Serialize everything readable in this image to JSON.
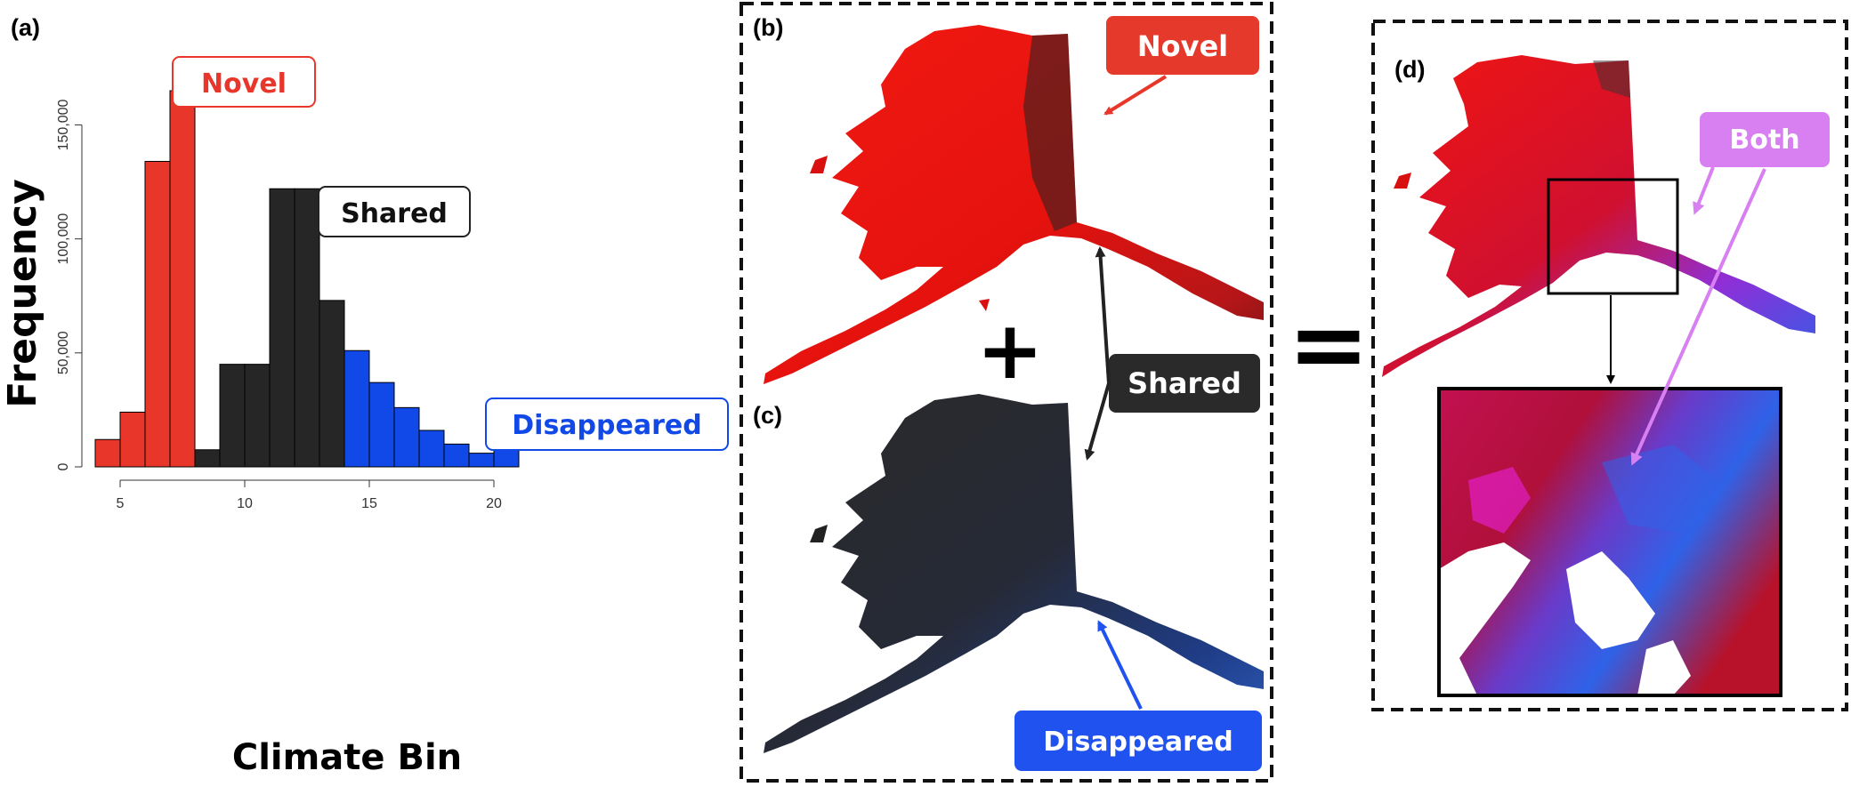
{
  "panels": {
    "a": "(a)",
    "b": "(b)",
    "c": "(c)",
    "d": "(d)"
  },
  "operators": {
    "plus": "+",
    "equals": "="
  },
  "callouts": {
    "novel": "Novel",
    "shared": "Shared",
    "disappeared": "Disappeared",
    "both": "Both"
  },
  "colors": {
    "novel": "#e8372a",
    "shared": "#262626",
    "disappeared": "#1049e8",
    "both": "#d87ff2",
    "novel_box": "#e53a2b",
    "disappeared_box": "#1f52ef"
  },
  "chart_data": {
    "type": "bar",
    "xlabel": "Climate Bin",
    "ylabel": "Frequency",
    "xlim": [
      4,
      21
    ],
    "ylim": [
      0,
      165000
    ],
    "xticks": [
      5,
      10,
      15,
      20
    ],
    "yticks": [
      0,
      50000,
      100000,
      150000
    ],
    "ytick_labels": [
      "0",
      "50,000",
      "100,000",
      "150,000"
    ],
    "series": [
      {
        "name": "Novel",
        "color": "#e8372a",
        "bins": [
          4,
          5,
          6,
          7
        ],
        "values": [
          12000,
          24000,
          134000,
          165000
        ]
      },
      {
        "name": "Shared",
        "color": "#262626",
        "bins": [
          8,
          9,
          10,
          11,
          12,
          13
        ],
        "values": [
          7500,
          45000,
          45000,
          122000,
          122000,
          73000
        ]
      },
      {
        "name": "Disappeared",
        "color": "#1049e8",
        "bins": [
          14,
          15,
          16,
          17,
          18,
          19,
          20
        ],
        "values": [
          51000,
          37000,
          26000,
          16000,
          10000,
          6000,
          7500
        ]
      }
    ]
  }
}
